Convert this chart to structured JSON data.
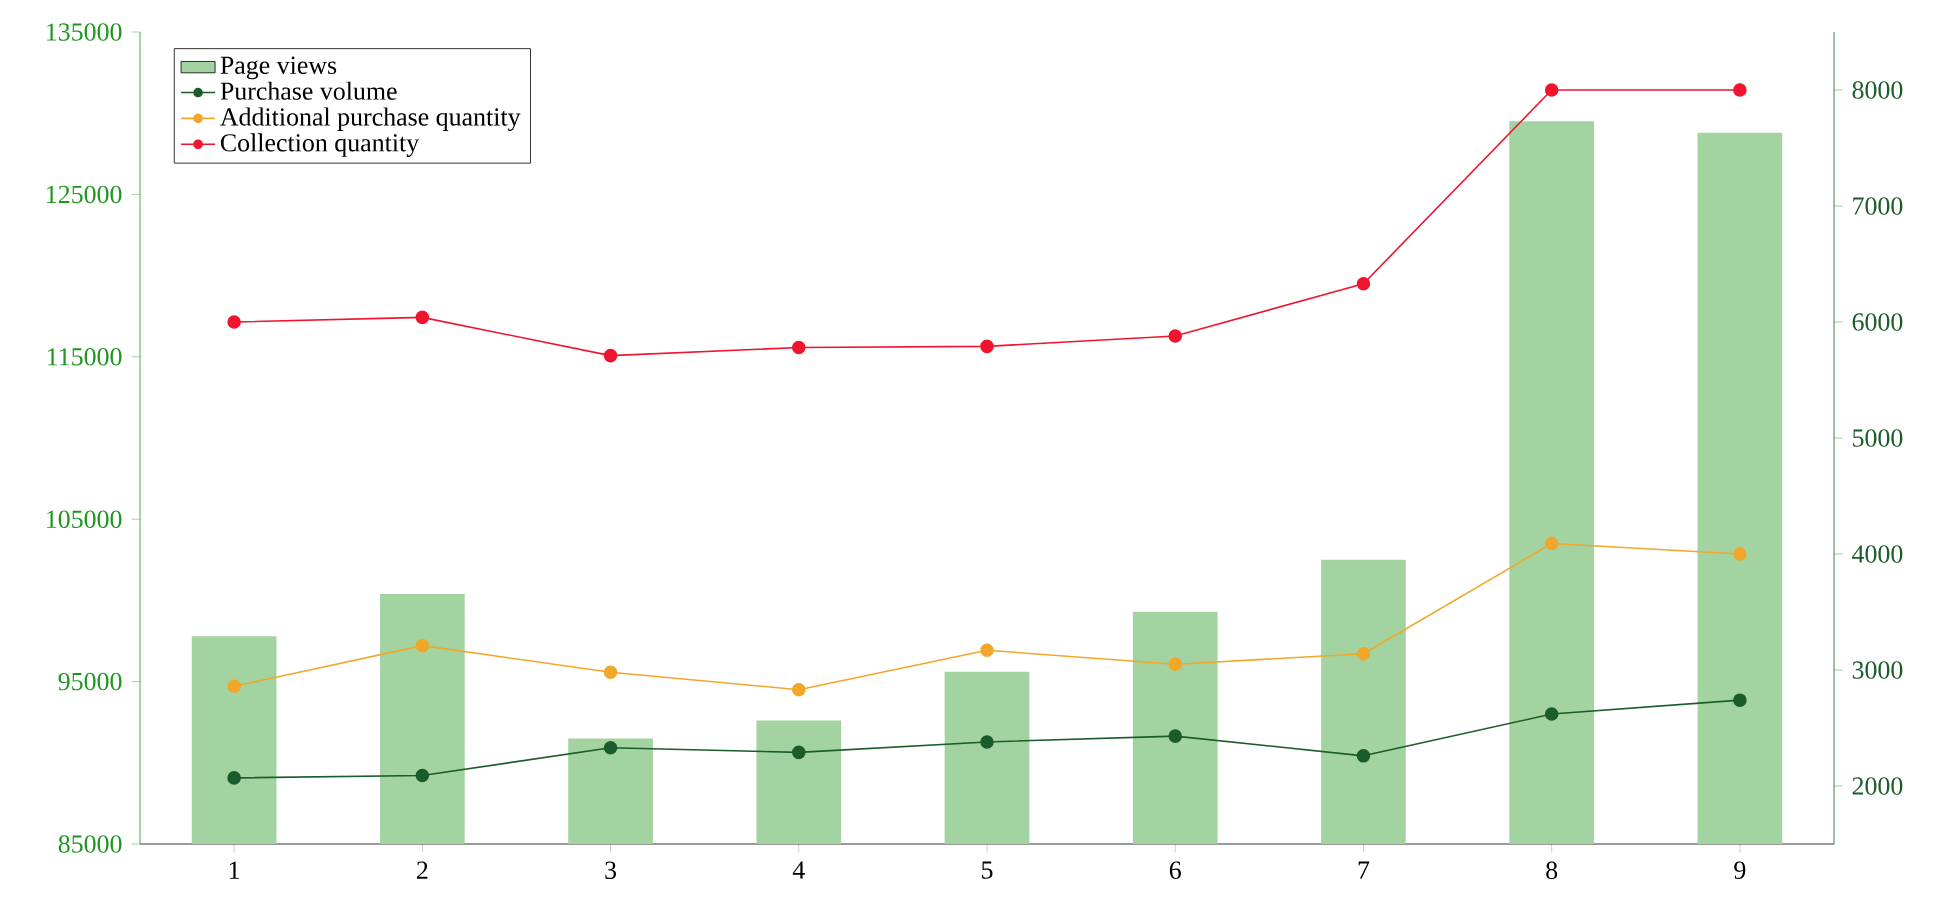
{
  "chart_data": {
    "type": "line",
    "categories": [
      "1",
      "2",
      "3",
      "4",
      "5",
      "6",
      "7",
      "8",
      "9"
    ],
    "series": [
      {
        "name": "Page views",
        "type": "bar",
        "color": "#a3d3a1",
        "values": [
          97800,
          100400,
          91500,
          92600,
          95600,
          99300,
          102500,
          129500,
          128800
        ]
      },
      {
        "name": "Purchase volume",
        "axis": "y2",
        "color": "#1a5c2a",
        "values": [
          2070,
          2090,
          2330,
          2290,
          2380,
          2430,
          2260,
          2620,
          2740
        ]
      },
      {
        "name": "Additional purchase quantity",
        "axis": "y2",
        "color": "#f2a72a",
        "values": [
          2860,
          3210,
          2980,
          2830,
          3170,
          3050,
          3140,
          4090,
          4000
        ]
      },
      {
        "name": "Collection quantity",
        "axis": "y2",
        "color": "#f0142e",
        "values": [
          6000,
          6040,
          5710,
          5780,
          5790,
          5880,
          6330,
          8000,
          8000
        ]
      }
    ],
    "ylim": [
      85000,
      135000
    ],
    "yticks": [
      85000,
      95000,
      105000,
      115000,
      125000,
      135000
    ],
    "y2lim": [
      1500,
      8500
    ],
    "y2ticks": [
      2000,
      3000,
      4000,
      5000,
      6000,
      7000,
      8000
    ],
    "legend": "top left",
    "grid": false,
    "marker": "circle",
    "line_style": "solid"
  }
}
